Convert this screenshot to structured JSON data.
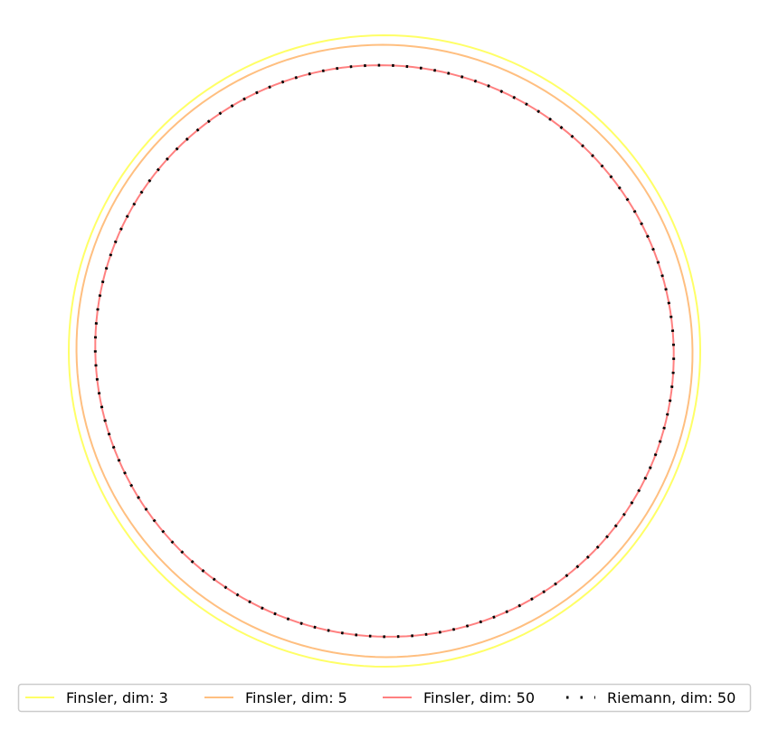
{
  "chart_data": {
    "type": "line",
    "title": "",
    "xlabel": "",
    "ylabel": "",
    "axes": "hidden",
    "grid": false,
    "legend_placement": "bottom-center",
    "series": [
      {
        "name": "Finsler, dim: 3",
        "color": "#ffff66",
        "style": "solid",
        "radius": 1.0,
        "shape": 0.0
      },
      {
        "name": "Finsler, dim: 5",
        "color": "#ffbf80",
        "style": "solid",
        "radius": 0.975,
        "shape": 0.04
      },
      {
        "name": "Finsler, dim: 50",
        "color": "#ff8080",
        "style": "solid",
        "radius": 0.915,
        "shape": 0.08
      },
      {
        "name": "Riemann, dim: 50",
        "color": "#000000",
        "style": "dotted",
        "radius": 0.915,
        "shape": 0.08
      }
    ]
  }
}
